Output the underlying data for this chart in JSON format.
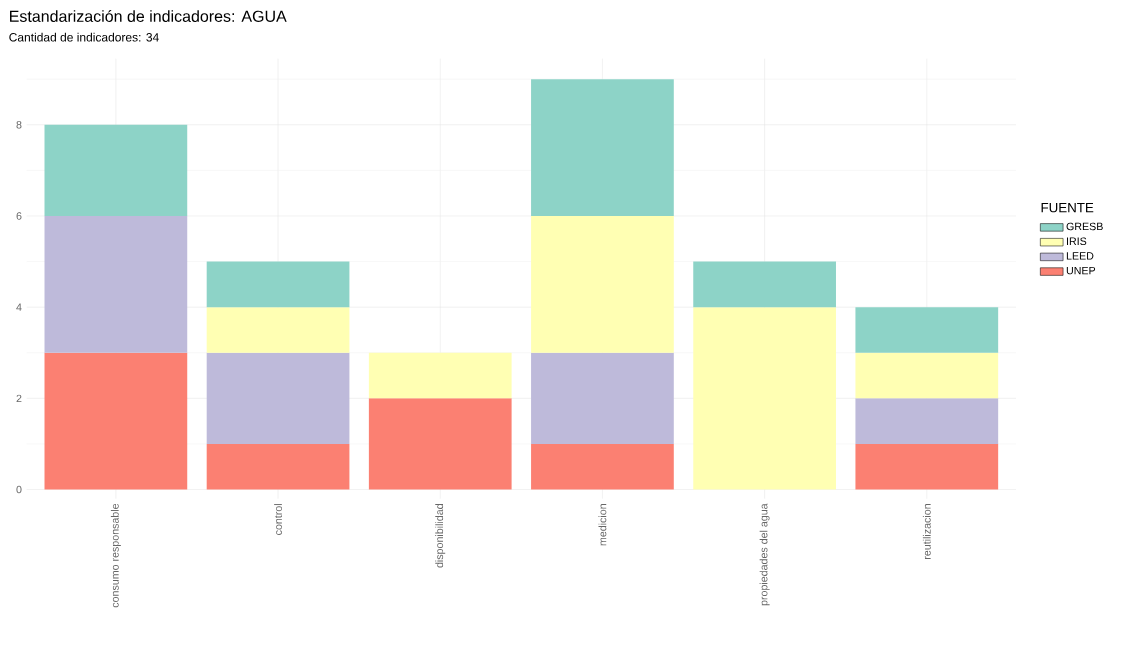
{
  "chart_data": {
    "type": "bar",
    "stacked": true,
    "title": "Estandarización de indicadores: AGUA",
    "subtitle": "Cantidad de indicadores: 34",
    "categories": [
      "consumo responsable",
      "control",
      "disponibilidad",
      "medicion",
      "propiedades del agua",
      "reutilizacion"
    ],
    "series": [
      {
        "name": "UNEP",
        "color": "#fb8072",
        "values": [
          3,
          1,
          2,
          1,
          null,
          1
        ]
      },
      {
        "name": "LEED",
        "color": "#bebada",
        "values": [
          3,
          2,
          null,
          2,
          null,
          1
        ]
      },
      {
        "name": "IRIS",
        "color": "#ffffb3",
        "values": [
          null,
          1,
          1,
          3,
          4,
          1
        ]
      },
      {
        "name": "GRESB",
        "color": "#8dd3c7",
        "values": [
          2,
          1,
          null,
          3,
          1,
          1
        ]
      }
    ],
    "legend_title": "FUENTE",
    "legend": "right",
    "grid": true,
    "ylim": [
      -0.2,
      9.45
    ],
    "yticks": [
      0,
      2,
      4,
      6,
      8
    ]
  }
}
